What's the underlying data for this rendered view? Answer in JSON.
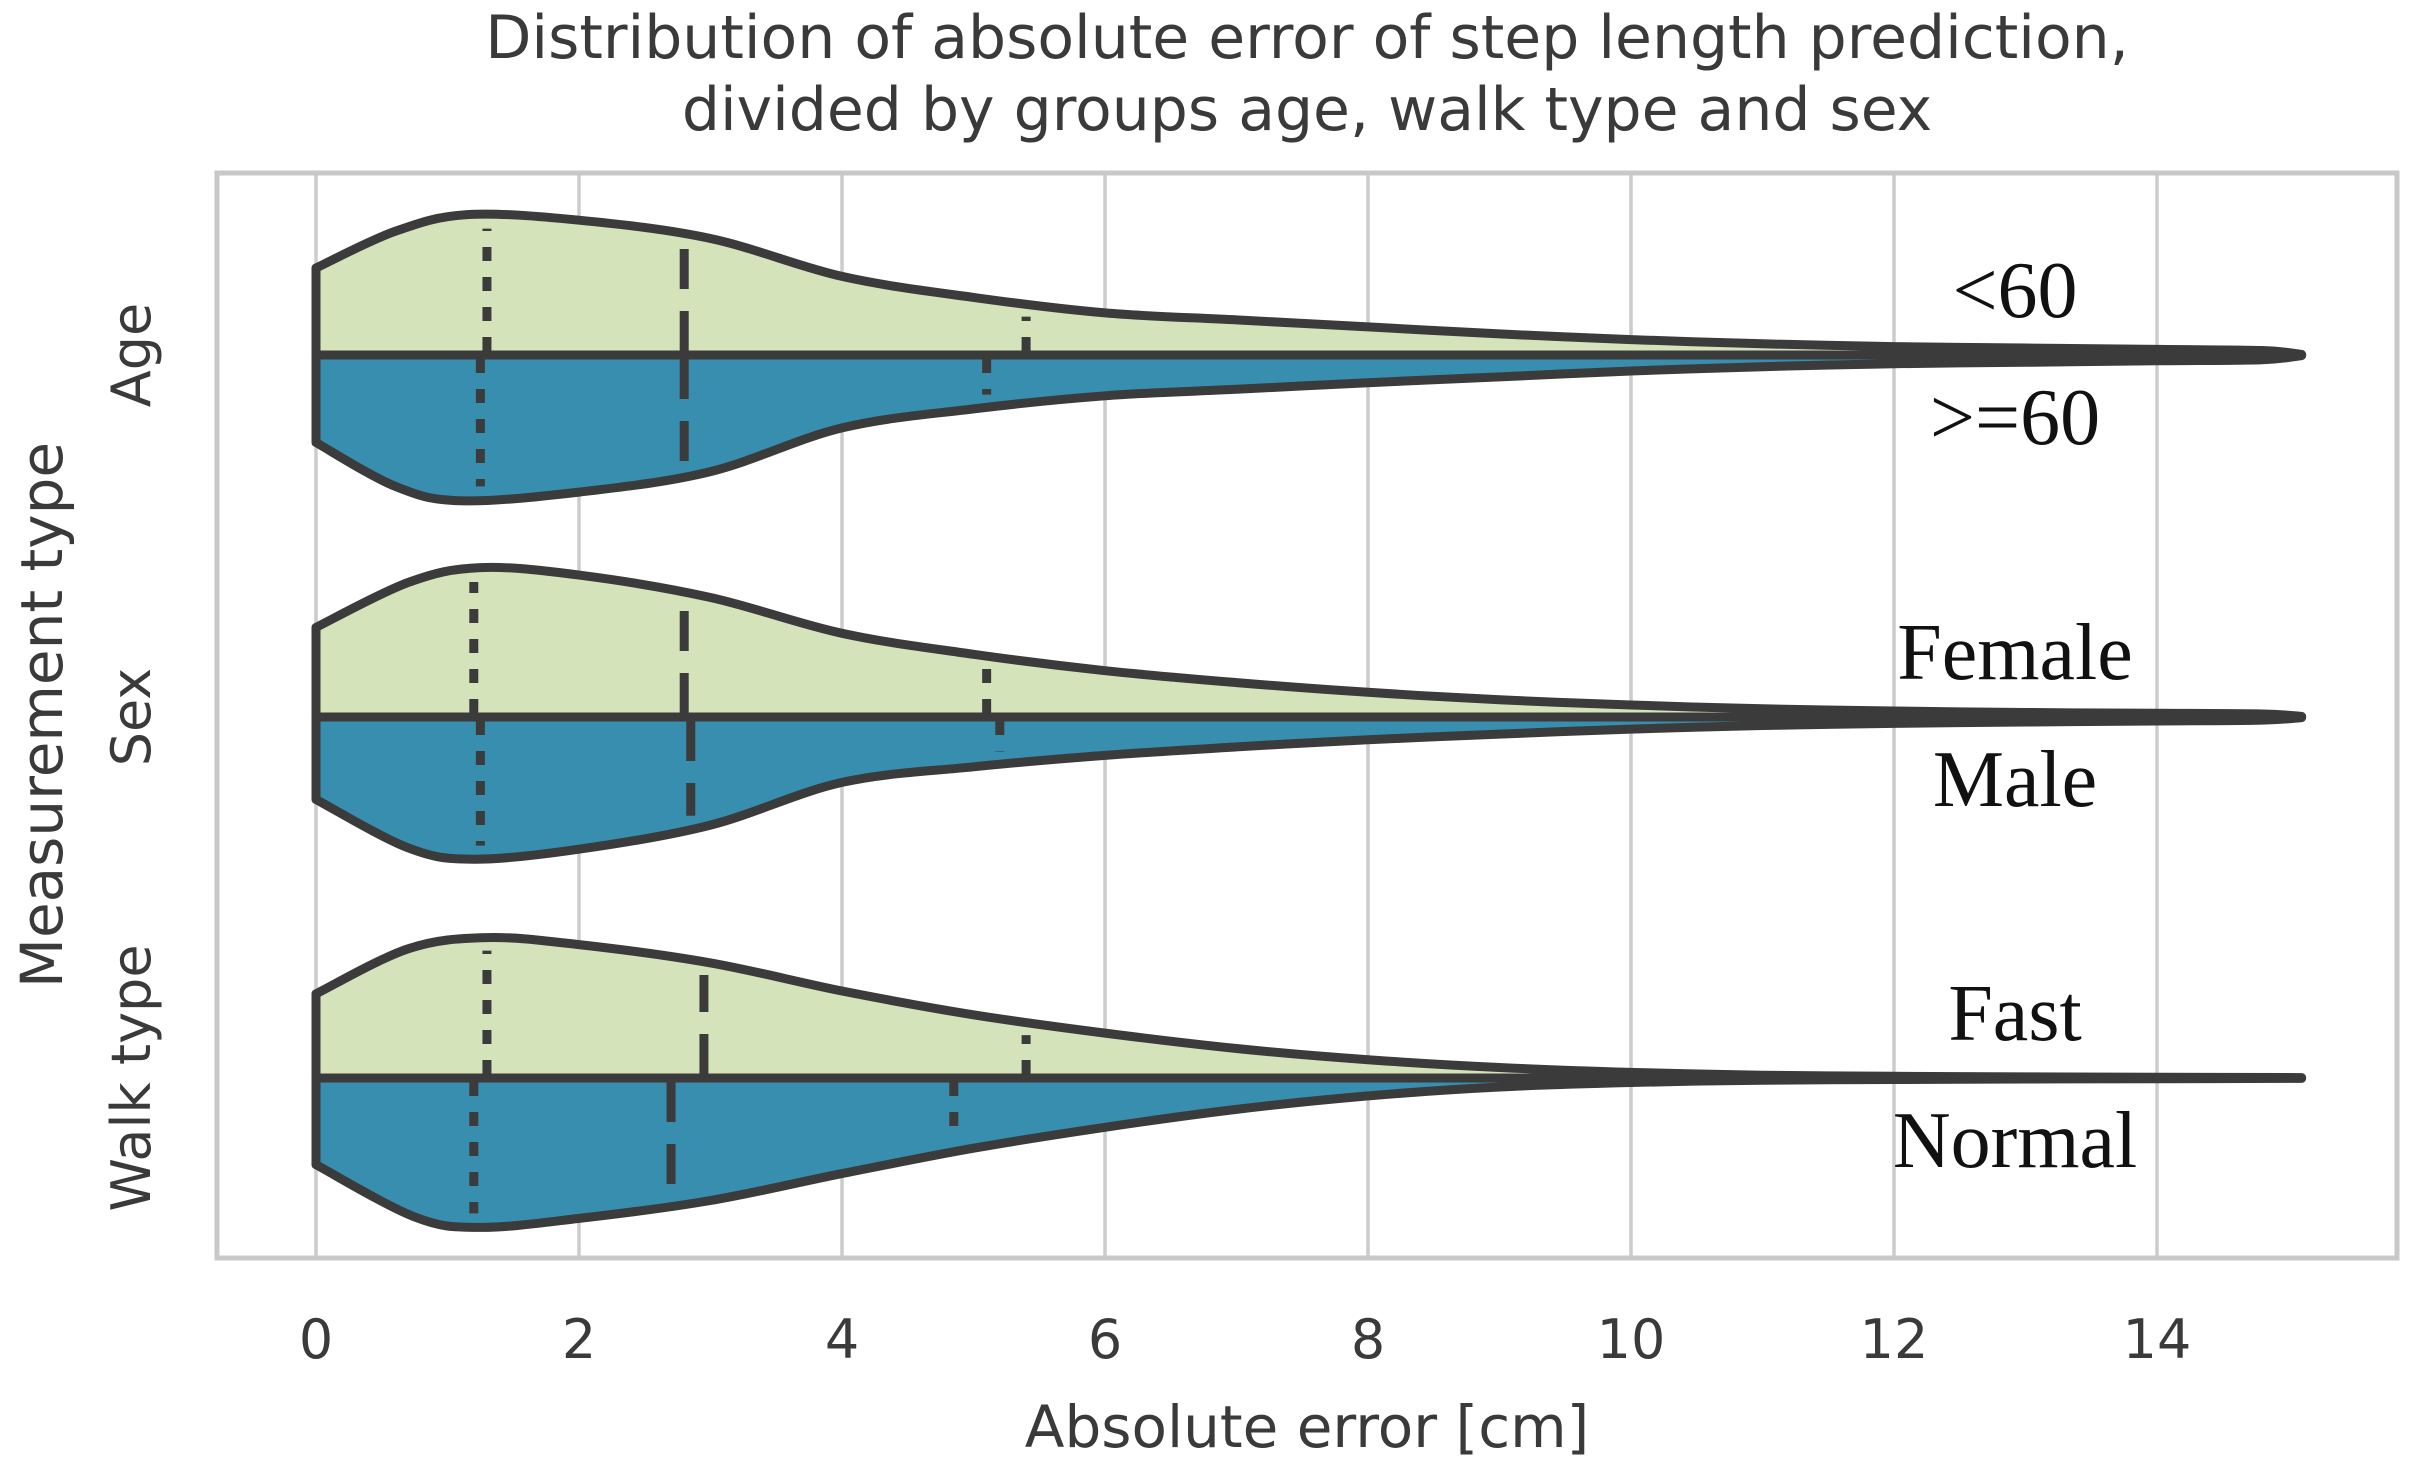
{
  "title": {
    "line1": "Distribution of absolute error of step length prediction,",
    "line2": "divided by groups age, walk type and sex"
  },
  "axes": {
    "xlabel": "Absolute error [cm]",
    "ylabel": "Measurement type",
    "x_tick_labels": [
      "0",
      "2",
      "4",
      "6",
      "8",
      "10",
      "12",
      "14"
    ],
    "x_tick_values": [
      0,
      2,
      4,
      6,
      8,
      10,
      12,
      14
    ],
    "xlim": [
      -0.77,
      15.85
    ],
    "y_tick_labels": [
      "Age",
      "Sex",
      "Walk type"
    ],
    "grid": "vertical-only"
  },
  "style": {
    "green": "#d5e3ba",
    "blue": "#388eae",
    "outline": "#3b3b3b",
    "grid": "#cccccc",
    "border": "#c8c8c8",
    "text": "#3a3a3a",
    "label_color": "#111111",
    "background": "#ffffff"
  },
  "chart_data": {
    "type": "violin",
    "split": true,
    "orientation": "horizontal",
    "title": "Distribution of absolute error of step length prediction, divided by groups age, walk type and sex",
    "xlabel": "Absolute error [cm]",
    "ylabel": "Measurement type",
    "x_unit": "cm",
    "data_range": [
      0,
      15.1
    ],
    "legend_position": "inline-right-labels",
    "quartile_line_styles": {
      "q1": "dotted",
      "median": "dashed",
      "q3": "dotted"
    },
    "rows": [
      {
        "label": "Age",
        "top": {
          "group": "<60",
          "color_key": "green",
          "quartiles": {
            "q1": 1.3,
            "median": 2.8,
            "q3": 5.4
          },
          "peak_halfwidth": 0.78,
          "density_profile": [
            [
              0,
              0.62
            ],
            [
              0.6,
              0.88
            ],
            [
              1.15,
              1.0
            ],
            [
              2,
              0.96
            ],
            [
              3,
              0.83
            ],
            [
              4,
              0.56
            ],
            [
              5,
              0.41
            ],
            [
              6,
              0.3
            ],
            [
              7,
              0.25
            ],
            [
              8,
              0.2
            ],
            [
              9,
              0.15
            ],
            [
              10,
              0.11
            ],
            [
              11,
              0.08
            ],
            [
              12,
              0.06
            ],
            [
              13,
              0.05
            ],
            [
              14,
              0.04
            ],
            [
              14.8,
              0.032
            ],
            [
              15.1,
              0.004
            ]
          ]
        },
        "bottom": {
          "group": ">=60",
          "color_key": "blue",
          "quartiles": {
            "q1": 1.25,
            "median": 2.8,
            "q3": 5.1
          },
          "peak_halfwidth": 0.81,
          "density_profile": [
            [
              0,
              0.6
            ],
            [
              0.6,
              0.9
            ],
            [
              1.1,
              1.0
            ],
            [
              2,
              0.94
            ],
            [
              3,
              0.8
            ],
            [
              4,
              0.5
            ],
            [
              5,
              0.37
            ],
            [
              6,
              0.28
            ],
            [
              7,
              0.235
            ],
            [
              8,
              0.19
            ],
            [
              9,
              0.15
            ],
            [
              10,
              0.11
            ],
            [
              11,
              0.08
            ],
            [
              12,
              0.06
            ],
            [
              13,
              0.05
            ],
            [
              14,
              0.04
            ],
            [
              14.8,
              0.032
            ],
            [
              15.1,
              0.004
            ]
          ]
        }
      },
      {
        "label": "Sex",
        "top": {
          "group": "Female",
          "color_key": "green",
          "quartiles": {
            "q1": 1.2,
            "median": 2.8,
            "q3": 5.1
          },
          "peak_halfwidth": 0.83,
          "density_profile": [
            [
              0,
              0.6
            ],
            [
              0.7,
              0.9
            ],
            [
              1.25,
              1.0
            ],
            [
              2,
              0.95
            ],
            [
              3,
              0.8
            ],
            [
              4,
              0.56
            ],
            [
              5,
              0.42
            ],
            [
              6,
              0.31
            ],
            [
              7,
              0.23
            ],
            [
              8,
              0.165
            ],
            [
              9,
              0.115
            ],
            [
              10,
              0.08
            ],
            [
              11,
              0.055
            ],
            [
              12,
              0.04
            ],
            [
              13,
              0.03
            ],
            [
              14,
              0.025
            ],
            [
              14.8,
              0.02
            ],
            [
              15.1,
              0.004
            ]
          ]
        },
        "bottom": {
          "group": "Male",
          "color_key": "blue",
          "quartiles": {
            "q1": 1.25,
            "median": 2.85,
            "q3": 5.2
          },
          "peak_halfwidth": 0.79,
          "density_profile": [
            [
              0,
              0.58
            ],
            [
              0.7,
              0.92
            ],
            [
              1.2,
              1.0
            ],
            [
              2,
              0.93
            ],
            [
              3,
              0.76
            ],
            [
              4,
              0.46
            ],
            [
              5,
              0.35
            ],
            [
              6,
              0.27
            ],
            [
              7,
              0.21
            ],
            [
              8,
              0.16
            ],
            [
              9,
              0.12
            ],
            [
              10,
              0.085
            ],
            [
              11,
              0.06
            ],
            [
              12,
              0.045
            ],
            [
              13,
              0.035
            ],
            [
              14,
              0.028
            ],
            [
              14.8,
              0.022
            ],
            [
              15.1,
              0.004
            ]
          ]
        }
      },
      {
        "label": "Walk type",
        "top": {
          "group": "Fast",
          "color_key": "green",
          "quartiles": {
            "q1": 1.3,
            "median": 2.95,
            "q3": 5.4
          },
          "peak_halfwidth": 0.78,
          "density_profile": [
            [
              0,
              0.6
            ],
            [
              0.7,
              0.92
            ],
            [
              1.3,
              1.0
            ],
            [
              2,
              0.95
            ],
            [
              3,
              0.82
            ],
            [
              4,
              0.62
            ],
            [
              5,
              0.45
            ],
            [
              6,
              0.32
            ],
            [
              7,
              0.21
            ],
            [
              8,
              0.13
            ],
            [
              9,
              0.075
            ],
            [
              10,
              0.04
            ],
            [
              11,
              0.02
            ],
            [
              12,
              0.012
            ],
            [
              13,
              0.008
            ],
            [
              14,
              0.006
            ],
            [
              15.1,
              0.003
            ]
          ]
        },
        "bottom": {
          "group": "Normal",
          "color_key": "blue",
          "quartiles": {
            "q1": 1.2,
            "median": 2.7,
            "q3": 4.85
          },
          "peak_halfwidth": 0.83,
          "density_profile": [
            [
              0,
              0.58
            ],
            [
              0.75,
              0.93
            ],
            [
              1.25,
              1.0
            ],
            [
              2,
              0.94
            ],
            [
              3,
              0.82
            ],
            [
              4,
              0.64
            ],
            [
              5,
              0.47
            ],
            [
              6,
              0.33
            ],
            [
              7,
              0.21
            ],
            [
              8,
              0.12
            ],
            [
              9,
              0.06
            ],
            [
              10,
              0.03
            ],
            [
              11,
              0.015
            ],
            [
              12,
              0.01
            ],
            [
              13,
              0.007
            ],
            [
              14,
              0.005
            ],
            [
              15.1,
              0.003
            ]
          ]
        }
      }
    ]
  }
}
